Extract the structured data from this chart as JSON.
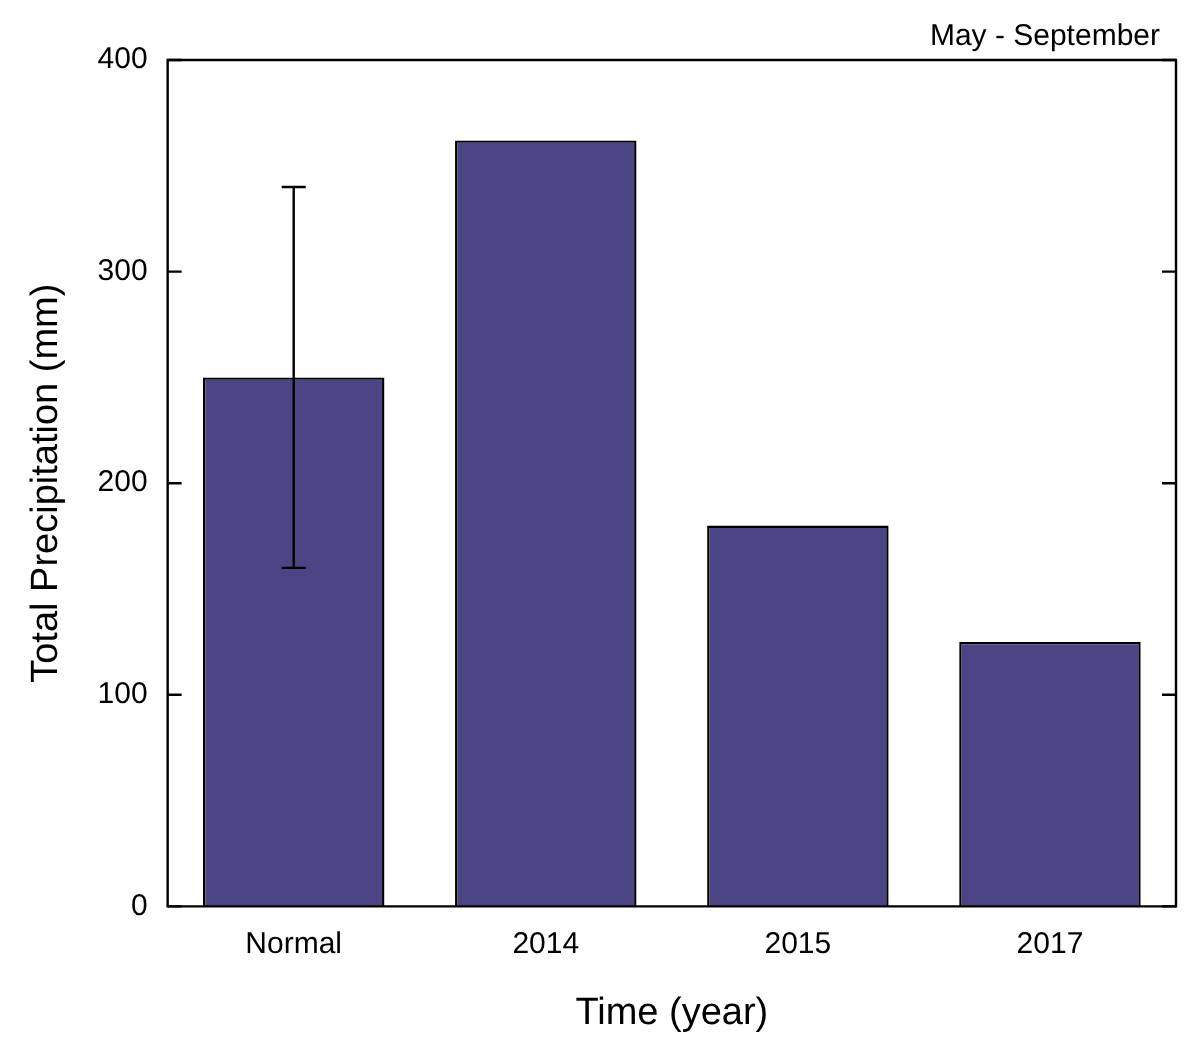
{
  "chart_data": {
    "type": "bar",
    "xlabel": "Time (year)",
    "ylabel": "Total Precipitation (mm)",
    "annotations": [
      "May - September"
    ],
    "categories": [
      "Normal",
      "2014",
      "2015",
      "2017"
    ],
    "values": [
      250,
      362,
      180,
      125
    ],
    "errors": [
      [
        160,
        340
      ],
      null,
      null,
      null
    ],
    "color": "#4b4585",
    "ylim": [
      0,
      400
    ],
    "yticks": [
      0,
      100,
      200,
      300,
      400
    ],
    "grid": false,
    "legend": false
  }
}
